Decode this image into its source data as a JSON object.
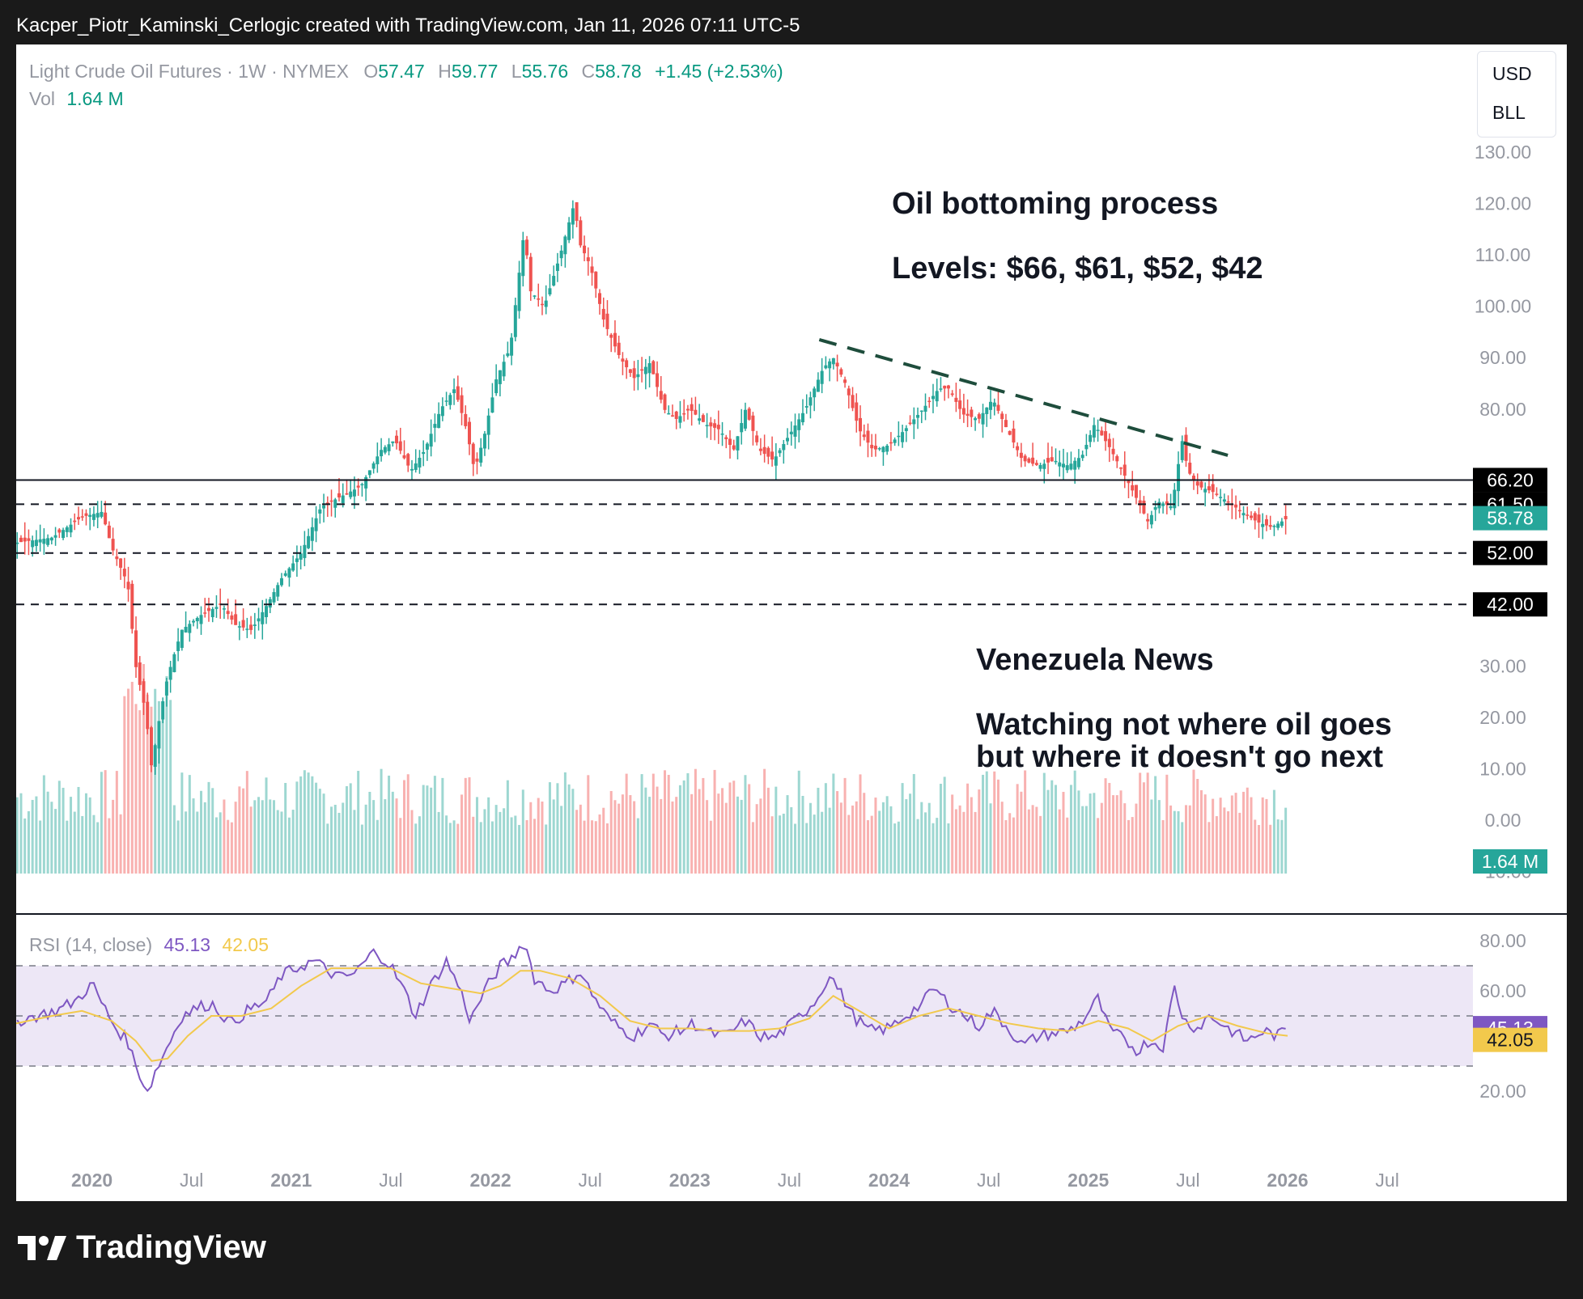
{
  "header": {
    "text": "Kacper_Piotr_Kaminski_Cerlogic created with TradingView.com, Jan 11, 2026 07:11 UTC-5"
  },
  "legend": {
    "symbol": "Light Crude Oil Futures · 1W · NYMEX",
    "o_label": "O",
    "o_value": "57.47",
    "h_label": "H",
    "h_value": "59.77",
    "l_label": "L",
    "l_value": "55.76",
    "c_label": "C",
    "c_value": "58.78",
    "change": "+1.45 (+2.53%)",
    "vol_label": "Vol",
    "vol_value": "1.64 M"
  },
  "units": {
    "currency": "USD",
    "unit": "BLL"
  },
  "annotations": {
    "title1": "Oil bottoming process",
    "title2": "Levels: $66, $61, $52, $42",
    "news1": "Venezuela News",
    "news2a": "Watching not where oil goes",
    "news2b": "but where it doesn't go next"
  },
  "rsi_legend": {
    "label": "RSI (14, close)",
    "rsi": "45.13",
    "ma": "42.05"
  },
  "footer": {
    "brand": "TradingView"
  },
  "colors": {
    "up": "#26a69a",
    "down": "#ef5350",
    "rsi": "#7e57c2",
    "rsi_ma": "#f2c94c",
    "band": "#ede7f6",
    "trend": "#1e4d3c"
  },
  "chart_data": [
    {
      "type": "candlestick",
      "title": "Light Crude Oil Futures · 1W · NYMEX",
      "ylim": [
        -10,
        130
      ],
      "y_ticks": [
        "130.00",
        "120.00",
        "110.00",
        "100.00",
        "90.00",
        "80.00",
        "66.20",
        "61.50",
        "58.78",
        "52.00",
        "42.00",
        "30.00",
        "20.00",
        "10.00",
        "0.00",
        "−10.00"
      ],
      "x_ticks": [
        "2020",
        "Jul",
        "2021",
        "Jul",
        "2022",
        "Jul",
        "2023",
        "Jul",
        "2024",
        "Jul",
        "2025",
        "Jul",
        "2026",
        "Jul"
      ],
      "x_tick_times": [
        2020.0,
        2020.5,
        2021.0,
        2021.5,
        2022.0,
        2022.5,
        2023.0,
        2023.5,
        2024.0,
        2024.5,
        2025.0,
        2025.5,
        2026.0,
        2026.5
      ],
      "xlim": [
        2019.62,
        2026.93
      ],
      "close_path": [
        [
          2019.62,
          54
        ],
        [
          2019.8,
          55
        ],
        [
          2019.95,
          59
        ],
        [
          2020.05,
          60
        ],
        [
          2020.1,
          53
        ],
        [
          2020.18,
          46
        ],
        [
          2020.22,
          30
        ],
        [
          2020.27,
          21
        ],
        [
          2020.3,
          10
        ],
        [
          2020.33,
          18
        ],
        [
          2020.38,
          28
        ],
        [
          2020.45,
          37
        ],
        [
          2020.55,
          40
        ],
        [
          2020.65,
          42
        ],
        [
          2020.72,
          38
        ],
        [
          2020.8,
          37
        ],
        [
          2020.88,
          42
        ],
        [
          2020.95,
          47
        ],
        [
          2021.05,
          52
        ],
        [
          2021.15,
          61
        ],
        [
          2021.25,
          63
        ],
        [
          2021.35,
          65
        ],
        [
          2021.45,
          72
        ],
        [
          2021.52,
          74
        ],
        [
          2021.6,
          68
        ],
        [
          2021.67,
          72
        ],
        [
          2021.75,
          80
        ],
        [
          2021.82,
          84
        ],
        [
          2021.88,
          76
        ],
        [
          2021.92,
          68
        ],
        [
          2021.97,
          75
        ],
        [
          2022.03,
          86
        ],
        [
          2022.1,
          92
        ],
        [
          2022.17,
          115
        ],
        [
          2022.2,
          103
        ],
        [
          2022.27,
          100
        ],
        [
          2022.35,
          110
        ],
        [
          2022.42,
          120
        ],
        [
          2022.45,
          112
        ],
        [
          2022.5,
          108
        ],
        [
          2022.57,
          97
        ],
        [
          2022.65,
          90
        ],
        [
          2022.72,
          86
        ],
        [
          2022.8,
          89
        ],
        [
          2022.87,
          80
        ],
        [
          2022.93,
          78
        ],
        [
          2023.0,
          80
        ],
        [
          2023.08,
          77
        ],
        [
          2023.15,
          76
        ],
        [
          2023.22,
          72
        ],
        [
          2023.28,
          80
        ],
        [
          2023.35,
          72
        ],
        [
          2023.42,
          70
        ],
        [
          2023.5,
          75
        ],
        [
          2023.58,
          80
        ],
        [
          2023.67,
          88
        ],
        [
          2023.72,
          90
        ],
        [
          2023.78,
          85
        ],
        [
          2023.85,
          76
        ],
        [
          2023.92,
          72
        ],
        [
          2024.0,
          73
        ],
        [
          2024.08,
          76
        ],
        [
          2024.17,
          80
        ],
        [
          2024.25,
          84
        ],
        [
          2024.3,
          84
        ],
        [
          2024.37,
          79
        ],
        [
          2024.45,
          78
        ],
        [
          2024.52,
          82
        ],
        [
          2024.58,
          77
        ],
        [
          2024.67,
          70
        ],
        [
          2024.75,
          69
        ],
        [
          2024.83,
          70
        ],
        [
          2024.9,
          69
        ],
        [
          2024.97,
          71
        ],
        [
          2025.03,
          77
        ],
        [
          2025.1,
          73
        ],
        [
          2025.17,
          68
        ],
        [
          2025.25,
          62
        ],
        [
          2025.3,
          58
        ],
        [
          2025.35,
          62
        ],
        [
          2025.42,
          61
        ],
        [
          2025.47,
          74
        ],
        [
          2025.5,
          68
        ],
        [
          2025.55,
          65
        ],
        [
          2025.62,
          64
        ],
        [
          2025.7,
          62
        ],
        [
          2025.77,
          60
        ],
        [
          2025.85,
          58
        ],
        [
          2025.92,
          57
        ],
        [
          2026.0,
          58.78
        ]
      ],
      "last_close": 58.78,
      "levels": [
        {
          "value": 66.2,
          "label": "66.20",
          "style": "solid"
        },
        {
          "value": 61.5,
          "label": "61.50",
          "style": "dashed"
        },
        {
          "value": 52.0,
          "label": "52.00",
          "style": "dashed"
        },
        {
          "value": 42.0,
          "label": "42.00",
          "style": "dashed"
        }
      ],
      "trendline": [
        [
          2023.65,
          93.5
        ],
        [
          2025.7,
          71
        ]
      ],
      "volume_last": "1.64 M"
    },
    {
      "type": "line",
      "title": "RSI (14, close)",
      "ylim": [
        15,
        85
      ],
      "y_ticks": [
        "80.00",
        "60.00",
        "20.00"
      ],
      "band": [
        30,
        70
      ],
      "midline": 50,
      "series": [
        {
          "name": "RSI",
          "values_path": [
            [
              2019.62,
              48
            ],
            [
              2019.72,
              50
            ],
            [
              2019.82,
              52
            ],
            [
              2019.92,
              56
            ],
            [
              2020.0,
              63
            ],
            [
              2020.05,
              55
            ],
            [
              2020.12,
              45
            ],
            [
              2020.18,
              40
            ],
            [
              2020.22,
              30
            ],
            [
              2020.28,
              20
            ],
            [
              2020.32,
              28
            ],
            [
              2020.38,
              38
            ],
            [
              2020.45,
              50
            ],
            [
              2020.52,
              53
            ],
            [
              2020.6,
              55
            ],
            [
              2020.7,
              47
            ],
            [
              2020.78,
              52
            ],
            [
              2020.88,
              56
            ],
            [
              2020.95,
              66
            ],
            [
              2021.05,
              70
            ],
            [
              2021.12,
              72
            ],
            [
              2021.18,
              68
            ],
            [
              2021.25,
              65
            ],
            [
              2021.32,
              67
            ],
            [
              2021.42,
              76
            ],
            [
              2021.5,
              70
            ],
            [
              2021.58,
              58
            ],
            [
              2021.62,
              50
            ],
            [
              2021.7,
              62
            ],
            [
              2021.78,
              72
            ],
            [
              2021.85,
              60
            ],
            [
              2021.9,
              48
            ],
            [
              2021.97,
              60
            ],
            [
              2022.05,
              70
            ],
            [
              2022.1,
              72
            ],
            [
              2022.17,
              80
            ],
            [
              2022.22,
              65
            ],
            [
              2022.3,
              60
            ],
            [
              2022.38,
              63
            ],
            [
              2022.45,
              68
            ],
            [
              2022.5,
              60
            ],
            [
              2022.58,
              50
            ],
            [
              2022.65,
              45
            ],
            [
              2022.72,
              42
            ],
            [
              2022.8,
              47
            ],
            [
              2022.87,
              42
            ],
            [
              2022.95,
              44
            ],
            [
              2023.02,
              47
            ],
            [
              2023.1,
              43
            ],
            [
              2023.18,
              42
            ],
            [
              2023.28,
              48
            ],
            [
              2023.35,
              42
            ],
            [
              2023.42,
              41
            ],
            [
              2023.5,
              46
            ],
            [
              2023.58,
              52
            ],
            [
              2023.65,
              58
            ],
            [
              2023.7,
              67
            ],
            [
              2023.75,
              60
            ],
            [
              2023.82,
              50
            ],
            [
              2023.9,
              44
            ],
            [
              2024.0,
              45
            ],
            [
              2024.08,
              50
            ],
            [
              2024.17,
              55
            ],
            [
              2024.22,
              61
            ],
            [
              2024.3,
              55
            ],
            [
              2024.38,
              50
            ],
            [
              2024.45,
              46
            ],
            [
              2024.52,
              52
            ],
            [
              2024.6,
              45
            ],
            [
              2024.67,
              38
            ],
            [
              2024.75,
              42
            ],
            [
              2024.82,
              43
            ],
            [
              2024.9,
              44
            ],
            [
              2024.97,
              48
            ],
            [
              2025.05,
              57
            ],
            [
              2025.1,
              45
            ],
            [
              2025.17,
              41
            ],
            [
              2025.25,
              36
            ],
            [
              2025.3,
              40
            ],
            [
              2025.38,
              38
            ],
            [
              2025.43,
              62
            ],
            [
              2025.48,
              48
            ],
            [
              2025.55,
              45
            ],
            [
              2025.6,
              50
            ],
            [
              2025.65,
              48
            ],
            [
              2025.72,
              44
            ],
            [
              2025.8,
              40
            ],
            [
              2025.88,
              44
            ],
            [
              2025.95,
              42
            ],
            [
              2026.0,
              45.13
            ]
          ],
          "last": 45.13
        },
        {
          "name": "MA",
          "values_path": [
            [
              2019.62,
              47
            ],
            [
              2019.8,
              50
            ],
            [
              2019.95,
              52
            ],
            [
              2020.1,
              48
            ],
            [
              2020.22,
              40
            ],
            [
              2020.3,
              32
            ],
            [
              2020.38,
              33
            ],
            [
              2020.48,
              42
            ],
            [
              2020.6,
              50
            ],
            [
              2020.75,
              50
            ],
            [
              2020.9,
              53
            ],
            [
              2021.05,
              62
            ],
            [
              2021.2,
              69
            ],
            [
              2021.35,
              69
            ],
            [
              2021.5,
              69
            ],
            [
              2021.65,
              63
            ],
            [
              2021.8,
              61
            ],
            [
              2021.95,
              59
            ],
            [
              2022.05,
              62
            ],
            [
              2022.15,
              68
            ],
            [
              2022.25,
              68
            ],
            [
              2022.4,
              65
            ],
            [
              2022.55,
              58
            ],
            [
              2022.7,
              48
            ],
            [
              2022.85,
              45
            ],
            [
              2023.0,
              45
            ],
            [
              2023.15,
              44
            ],
            [
              2023.3,
              44
            ],
            [
              2023.45,
              45
            ],
            [
              2023.6,
              49
            ],
            [
              2023.72,
              58
            ],
            [
              2023.85,
              52
            ],
            [
              2024.0,
              45
            ],
            [
              2024.15,
              50
            ],
            [
              2024.3,
              53
            ],
            [
              2024.45,
              50
            ],
            [
              2024.6,
              47
            ],
            [
              2024.75,
              45
            ],
            [
              2024.9,
              44
            ],
            [
              2025.05,
              48
            ],
            [
              2025.2,
              45
            ],
            [
              2025.32,
              40
            ],
            [
              2025.45,
              46
            ],
            [
              2025.6,
              50
            ],
            [
              2025.75,
              46
            ],
            [
              2025.9,
              43
            ],
            [
              2026.0,
              42.05
            ]
          ],
          "last": 42.05
        }
      ]
    }
  ]
}
